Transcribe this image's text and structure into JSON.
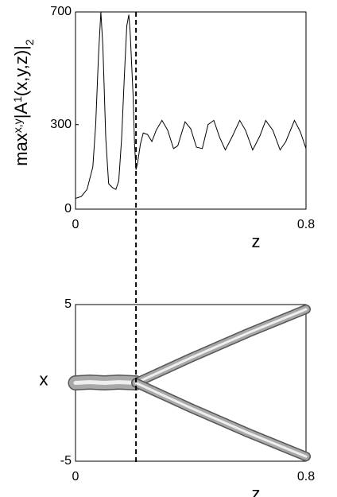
{
  "chart_data": [
    {
      "type": "line",
      "color": "#000000",
      "ylabel": [
        "max",
        "x,y",
        "|A",
        "1",
        "(x,y,z)|",
        "2"
      ],
      "xlabel": "z",
      "x": [
        0,
        0.02,
        0.04,
        0.06,
        0.07,
        0.08,
        0.088,
        0.095,
        0.105,
        0.115,
        0.13,
        0.14,
        0.15,
        0.16,
        0.17,
        0.178,
        0.185,
        0.19,
        0.2,
        0.205,
        0.21,
        0.215,
        0.225,
        0.235,
        0.25,
        0.265,
        0.28,
        0.3,
        0.32,
        0.34,
        0.355,
        0.38,
        0.4,
        0.42,
        0.44,
        0.46,
        0.48,
        0.5,
        0.52,
        0.545,
        0.57,
        0.59,
        0.615,
        0.64,
        0.66,
        0.685,
        0.71,
        0.73,
        0.76,
        0.78,
        0.8
      ],
      "values": [
        38,
        45,
        70,
        150,
        300,
        550,
        700,
        580,
        250,
        90,
        75,
        70,
        100,
        250,
        480,
        650,
        690,
        620,
        400,
        230,
        140,
        160,
        230,
        270,
        265,
        240,
        280,
        315,
        280,
        215,
        225,
        310,
        285,
        220,
        215,
        300,
        315,
        255,
        210,
        260,
        315,
        280,
        210,
        260,
        315,
        280,
        210,
        240,
        315,
        275,
        215
      ],
      "xlim": [
        0,
        0.8
      ],
      "xticks": [
        0,
        0.8
      ],
      "ylim": [
        0,
        700
      ],
      "yticks": [
        0,
        300,
        700
      ]
    },
    {
      "type": "surface",
      "color": "#a8a8a8",
      "ylabel": "x",
      "xlabel": "z",
      "series": [
        {
          "x": [
            0,
            0.05,
            0.1,
            0.15,
            0.21
          ],
          "values": [
            0,
            0.05,
            0,
            0.05,
            0
          ]
        },
        {
          "x": [
            0.21,
            0.4,
            0.6,
            0.8
          ],
          "values": [
            0,
            1.6,
            3.2,
            4.7
          ]
        },
        {
          "x": [
            0.21,
            0.4,
            0.6,
            0.8
          ],
          "values": [
            0,
            -1.6,
            -3.2,
            -4.7
          ]
        }
      ],
      "xlim": [
        0,
        0.8
      ],
      "xticks": [
        0,
        0.8
      ],
      "ylim": [
        -5,
        5
      ],
      "yticks": [
        -5,
        5
      ]
    }
  ],
  "marker_x": 0.21
}
